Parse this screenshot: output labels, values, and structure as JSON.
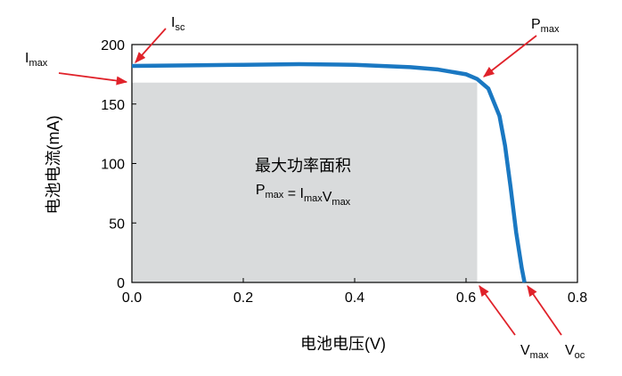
{
  "chart_data": {
    "type": "line",
    "x_label": "电池电压(V)",
    "y_label": "电池电流(mA)",
    "series": [
      {
        "color": "#1a78c2",
        "x": [
          0,
          0.1,
          0.2,
          0.3,
          0.4,
          0.5,
          0.55,
          0.6,
          0.62,
          0.64,
          0.66,
          0.67,
          0.68,
          0.69,
          0.7,
          0.705
        ],
        "values": [
          182,
          182.5,
          183,
          183.5,
          183,
          181,
          179,
          175,
          171,
          163,
          140,
          115,
          80,
          42,
          12,
          0
        ]
      }
    ],
    "xlim": [
      0,
      0.8
    ],
    "ylim": [
      0,
      200
    ],
    "xticks": [
      {
        "value": 0,
        "label": "0.0"
      },
      0.2,
      0.4,
      0.6,
      0.8
    ],
    "yticks": [
      0,
      50,
      100,
      150,
      200
    ],
    "region": {
      "label": "最大功率面积",
      "x": [
        0,
        0.62
      ],
      "y": [
        0,
        168
      ],
      "color": "#d9dbdc",
      "formula": [
        {
          "text": "P",
          "sub": "max"
        },
        {
          "text": " = I",
          "sub": "max"
        },
        {
          "text": "V",
          "sub": "max"
        }
      ]
    },
    "annotations": [
      {
        "text": "I",
        "sub": "sc"
      },
      {
        "text": "I",
        "sub": "max"
      },
      {
        "text": "P",
        "sub": "max"
      },
      {
        "text": "V",
        "sub": "max"
      },
      {
        "text": "V",
        "sub": "oc"
      }
    ],
    "annotation_color": "#e0222a"
  }
}
